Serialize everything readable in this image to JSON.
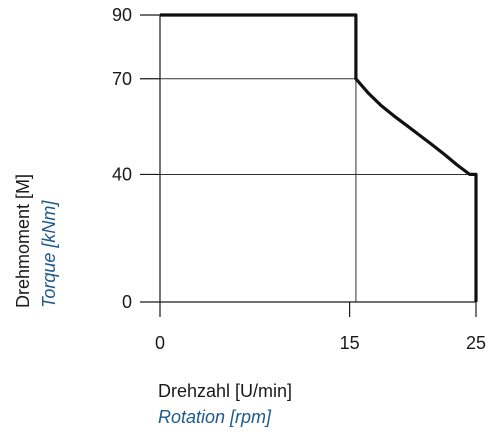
{
  "colors": {
    "axis": "#1a1a1a",
    "grid": "#333333",
    "curve": "#111111",
    "secondary_label": "#1f5a8c"
  },
  "chart_data": {
    "type": "line",
    "title": "",
    "xlabel": "Drehzahl [U/min]",
    "xlabel_secondary": "Rotation [rpm]",
    "ylabel": "Drehmoment  [M]",
    "ylabel_secondary": "Torque [kNm]",
    "xlim": [
      0,
      25
    ],
    "ylim": [
      0,
      90
    ],
    "x_ticks": [
      0,
      15,
      25
    ],
    "y_ticks": [
      0,
      40,
      70,
      90
    ],
    "grid": "reference lines at x=15, y=70 and y=40",
    "legend": "none",
    "series": [
      {
        "points": [
          [
            0,
            90
          ],
          [
            15.5,
            90
          ],
          [
            15.5,
            70
          ],
          [
            16.5,
            65.4
          ],
          [
            17.5,
            61.6
          ],
          [
            18.5,
            58.4
          ],
          [
            19.5,
            55.4
          ],
          [
            20.5,
            52.4
          ],
          [
            21.5,
            49.4
          ],
          [
            22.5,
            46.3
          ],
          [
            23.5,
            43.0
          ],
          [
            24.5,
            40
          ],
          [
            25,
            40
          ],
          [
            25,
            0
          ]
        ]
      }
    ],
    "reference_lines": [
      {
        "x": [
          0,
          15.5
        ],
        "y": [
          70,
          70
        ]
      },
      {
        "x": [
          0,
          25
        ],
        "y": [
          40,
          40
        ]
      },
      {
        "x": [
          15.5,
          15.5
        ],
        "y": [
          0,
          70
        ]
      }
    ]
  }
}
